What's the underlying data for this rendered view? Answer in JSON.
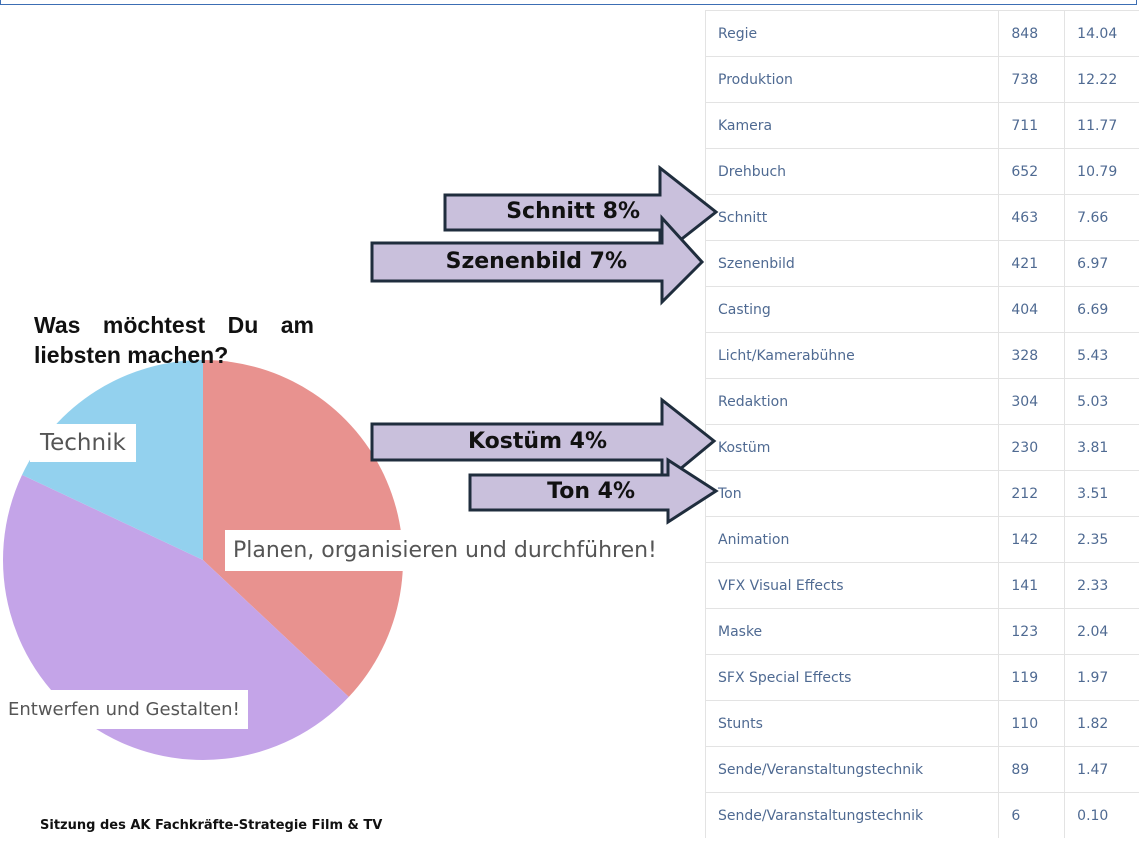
{
  "chart_data": {
    "type": "pie",
    "title": "Was möchtest Du am liebsten machen?",
    "categories": [
      "Planen, organisieren und durchführen!",
      "Entwerfen und Gestalten!",
      "Technik"
    ],
    "values": [
      37,
      45,
      18
    ],
    "colors": [
      "#e8928f",
      "#c4a4e8",
      "#93d1ee"
    ]
  },
  "table": {
    "rows": [
      [
        "Regie",
        "848",
        "14.04"
      ],
      [
        "Produktion",
        "738",
        "12.22"
      ],
      [
        "Kamera",
        "711",
        "11.77"
      ],
      [
        "Drehbuch",
        "652",
        "10.79"
      ],
      [
        "Schnitt",
        "463",
        "7.66"
      ],
      [
        "Szenenbild",
        "421",
        "6.97"
      ],
      [
        "Casting",
        "404",
        "6.69"
      ],
      [
        "Licht/Kamerabühne",
        "328",
        "5.43"
      ],
      [
        "Redaktion",
        "304",
        "5.03"
      ],
      [
        "Kostüm",
        "230",
        "3.81"
      ],
      [
        "Ton",
        "212",
        "3.51"
      ],
      [
        "Animation",
        "142",
        "2.35"
      ],
      [
        "VFX Visual Effects",
        "141",
        "2.33"
      ],
      [
        "Maske",
        "123",
        "2.04"
      ],
      [
        "SFX Special Effects",
        "119",
        "1.97"
      ],
      [
        "Stunts",
        "110",
        "1.82"
      ],
      [
        "Sende/Veranstaltungstechnik",
        "89",
        "1.47"
      ],
      [
        "Sende/Varanstaltungstechnik",
        "6",
        "0.10"
      ]
    ]
  },
  "callouts": [
    "Schnitt 8%",
    "Szenenbild 7%",
    "Kostüm 4%",
    "Ton 4%"
  ],
  "footer": "Sitzung des AK Fachkräfte-Strategie Film & TV"
}
